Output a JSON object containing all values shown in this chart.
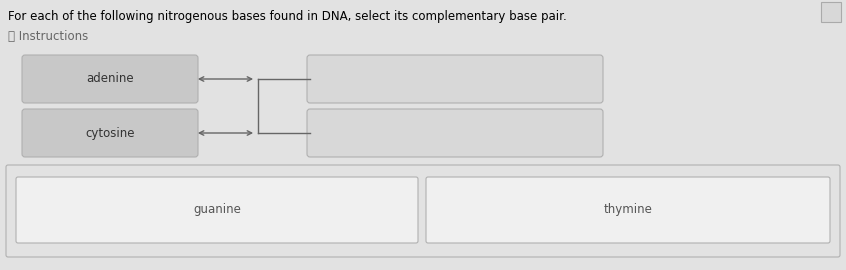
{
  "title": "For each of the following nitrogenous bases found in DNA, select its complementary base pair.",
  "instructions_text": "ⓘ Instructions",
  "bg_color": "#e2e2e2",
  "box_fill_left": "#c8c8c8",
  "box_fill_right": "#d8d8d8",
  "box_fill_bottom": "#f0f0f0",
  "box_stroke": "#b0b0b0",
  "left_labels": [
    "adenine",
    "cytosine"
  ],
  "bottom_labels": [
    "guanine",
    "thymine"
  ],
  "title_fontsize": 8.5,
  "label_fontsize": 8.5,
  "instructions_fontsize": 8.5
}
